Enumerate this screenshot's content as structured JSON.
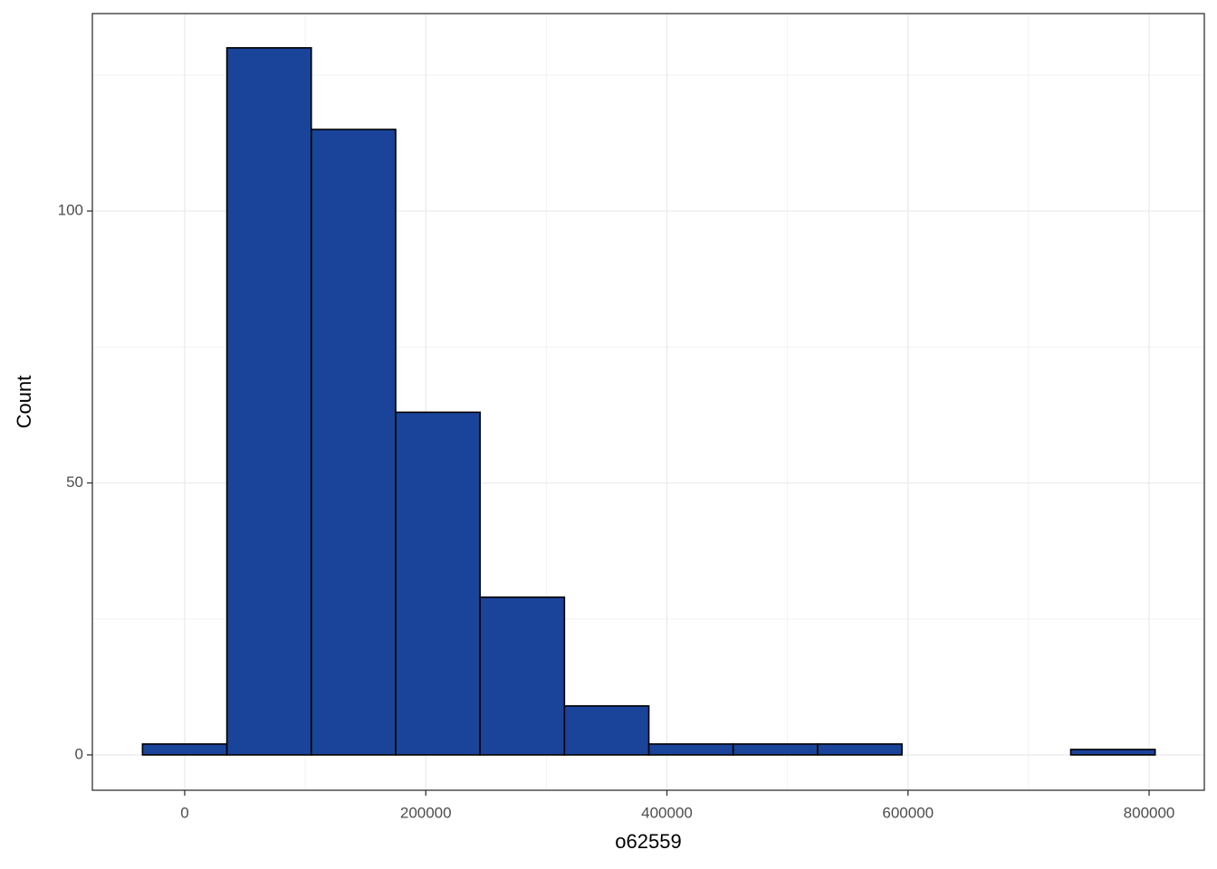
{
  "chart_data": {
    "type": "histogram",
    "x_label": "o62559",
    "y_label": "Count",
    "bins": [
      -35000,
      35000,
      105000,
      175000,
      245000,
      315000,
      385000,
      455000,
      525000,
      595000,
      665000,
      735000,
      805000
    ],
    "values": [
      2,
      130,
      115,
      63,
      29,
      9,
      2,
      2,
      2,
      0,
      0,
      1
    ],
    "color": "#1a4499",
    "edge_color": "#000000",
    "xlim": [
      -76600,
      845800
    ],
    "ylim": [
      -6.5,
      136.3
    ],
    "xticks": [
      0,
      200000,
      400000,
      600000,
      800000
    ],
    "yticks": [
      0,
      50,
      100
    ],
    "grid": true,
    "minor_grid": true
  }
}
